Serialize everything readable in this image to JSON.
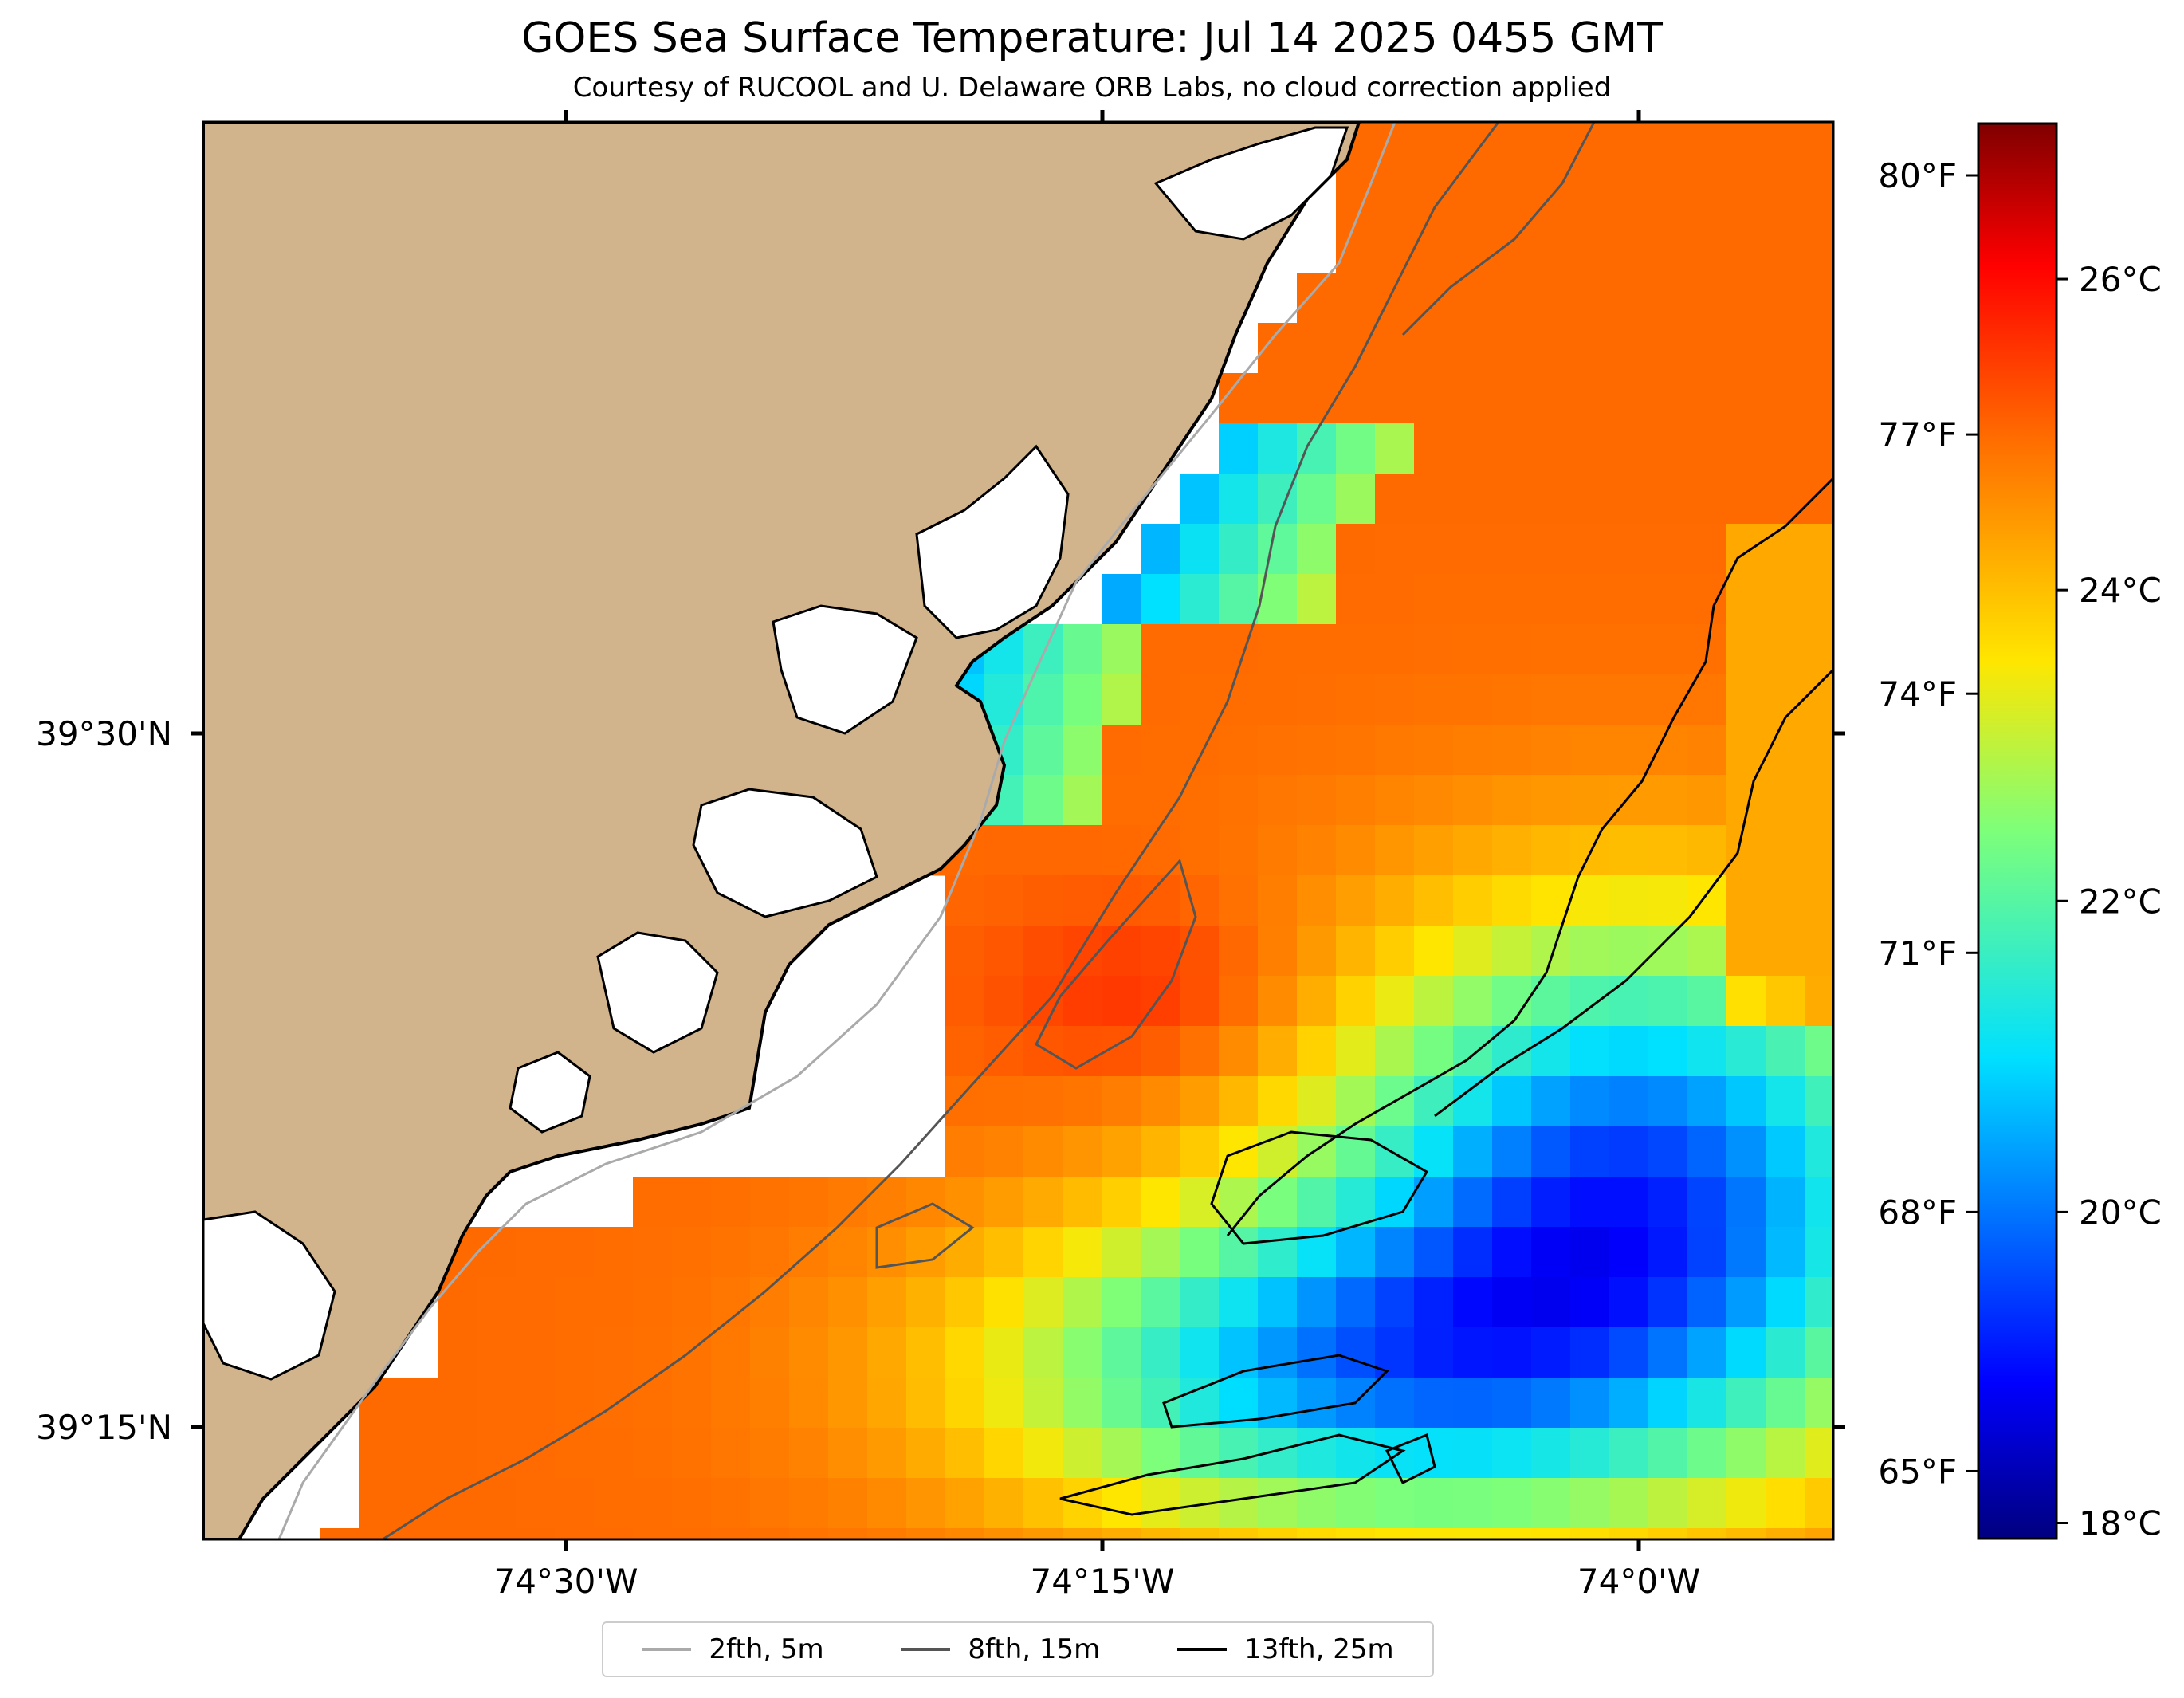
{
  "title": "GOES Sea Surface Temperature: Jul 14 2025 0455 GMT",
  "subtitle": "Courtesy of RUCOOL and U. Delaware ORB Labs, no cloud correction applied",
  "axes": {
    "lat_ticks": [
      "39°30'N",
      "39°15'N"
    ],
    "lon_ticks": [
      "74°30'W",
      "74°15'W",
      "74°0'W"
    ]
  },
  "colorbar": {
    "celsius_ticks": [
      "18°C",
      "20°C",
      "22°C",
      "24°C",
      "26°C"
    ],
    "fahrenheit_ticks": [
      "65°F",
      "68°F",
      "71°F",
      "74°F",
      "77°F",
      "80°F"
    ],
    "celsius_range": [
      17.9,
      27.0
    ],
    "colormap": "jet"
  },
  "legend": [
    {
      "label": "2fth, 5m",
      "color": "#aaaaaa"
    },
    {
      "label": "8fth, 15m",
      "color": "#555555"
    },
    {
      "label": "13fth, 25m",
      "color": "#000000"
    }
  ],
  "colors": {
    "land": "#d2b48c",
    "coastline": "#000000",
    "no_data": "#ffffff"
  }
}
